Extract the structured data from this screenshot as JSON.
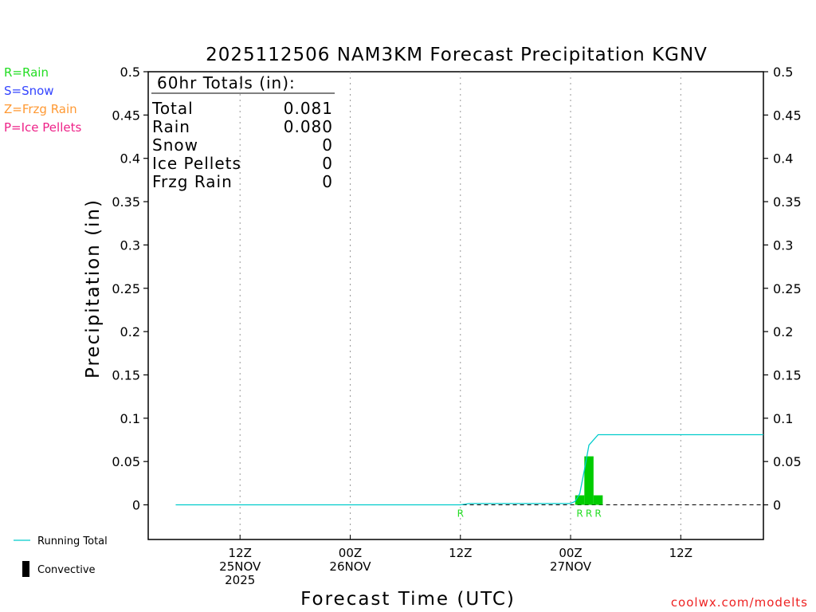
{
  "chart_data": {
    "type": "bar",
    "title": "2025112506 NAM3KM Forecast Precipitation KGNV",
    "xlabel": "Forecast Time (UTC)",
    "ylabel": "Precipitation (in)",
    "ylim": [
      -0.04,
      0.5
    ],
    "y_ticks": [
      "0",
      "0.05",
      "0.1",
      "0.15",
      "0.2",
      "0.25",
      "0.3",
      "0.35",
      "0.4",
      "0.45",
      "0.5"
    ],
    "y_tick_values": [
      0,
      0.05,
      0.1,
      0.15,
      0.2,
      0.25,
      0.3,
      0.35,
      0.4,
      0.45,
      0.5
    ],
    "x_range_hours": [
      -4,
      63
    ],
    "x_ticks": [
      {
        "hour": 6,
        "lines": [
          "12Z",
          "25NOV",
          "2025"
        ]
      },
      {
        "hour": 18,
        "lines": [
          "00Z",
          "26NOV"
        ]
      },
      {
        "hour": 30,
        "lines": [
          "12Z"
        ]
      },
      {
        "hour": 42,
        "lines": [
          "00Z",
          "27NOV"
        ]
      },
      {
        "hour": 54,
        "lines": [
          "12Z"
        ]
      }
    ],
    "grid": "vertical-dotted",
    "legend": {
      "placement": "top-left",
      "types": [
        {
          "text": "R=Rain",
          "color": "#22dd22"
        },
        {
          "text": "S=Snow",
          "color": "#3344ff"
        },
        {
          "text": "Z=Frzg Rain",
          "color": "#ff9933"
        },
        {
          "text": "P=Ice Pellets",
          "color": "#ee2288"
        }
      ],
      "lines": [
        {
          "text": "Running Total",
          "color": "#00cccc",
          "kind": "line"
        },
        {
          "text": "Convective",
          "color": "#000000",
          "kind": "block"
        }
      ]
    },
    "totals": {
      "header": "60hr Totals (in):",
      "rows": [
        {
          "label": "Total",
          "value": "0.081"
        },
        {
          "label": "Rain",
          "value": "0.080"
        },
        {
          "label": "Snow",
          "value": "0"
        },
        {
          "label": "Ice Pellets",
          "value": "0"
        },
        {
          "label": "Frzg Rain",
          "value": "0"
        }
      ]
    },
    "bars": [
      {
        "hour": 43,
        "value": 0.011,
        "type": "R"
      },
      {
        "hour": 44,
        "value": 0.056,
        "type": "R"
      },
      {
        "hour": 45,
        "value": 0.011,
        "type": "R"
      }
    ],
    "type_markers": [
      {
        "hour": 30,
        "text": "R"
      },
      {
        "hour": 43,
        "text": "R"
      },
      {
        "hour": 44,
        "text": "R"
      },
      {
        "hour": 45,
        "text": "R"
      }
    ],
    "running_total": {
      "name": "Running Total",
      "x": [
        -1,
        30,
        31,
        42,
        42.5,
        43,
        43.5,
        44,
        45,
        63
      ],
      "y": [
        0,
        0,
        0.0015,
        0.0015,
        0.004,
        0.013,
        0.04,
        0.069,
        0.081,
        0.081
      ]
    },
    "bar_color": "#00cc00",
    "line_color": "#00cccc"
  },
  "credit": "coolwx.com/modelts"
}
